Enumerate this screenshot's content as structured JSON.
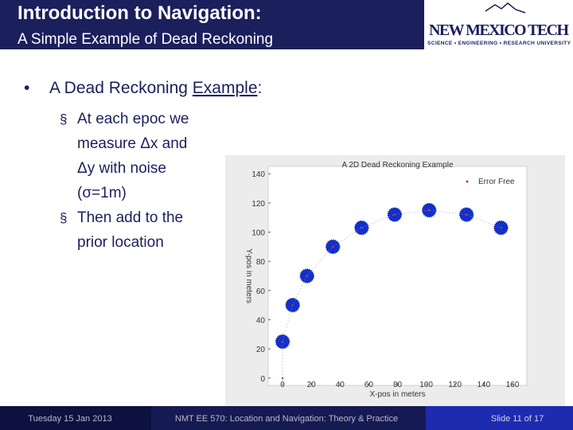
{
  "header": {
    "title": "Introduction to Navigation:",
    "subtitle": "A Simple Example of Dead Reckoning"
  },
  "logo": {
    "name": "NEW MEXICO TECH",
    "tagline": "SCIENCE • ENGINEERING • RESEARCH UNIVERSITY"
  },
  "bullet": {
    "marker": "•",
    "prefix": "A Dead Reckoning ",
    "link": "Example",
    "suffix": ":"
  },
  "sub_bullets": {
    "marker": "§",
    "items": [
      [
        "At each epoc we",
        "measure Δx and",
        "Δy with noise",
        "(σ=1m)"
      ],
      [
        "Then add to the",
        "prior location"
      ]
    ]
  },
  "chart_data": {
    "type": "scatter",
    "title": "A 2D Dead Reckoning Example",
    "xlabel": "X-pos in meters",
    "ylabel": "Y-pos in meters",
    "series": [
      {
        "name": "Error Free",
        "color": "#e03030",
        "x": [
          0,
          0,
          7,
          17,
          35,
          55,
          78,
          102,
          128,
          152
        ],
        "values": [
          0,
          25,
          50,
          70,
          90,
          103,
          112,
          115,
          112,
          103
        ]
      },
      {
        "color": "#1030d0",
        "x": [
          0,
          7,
          17,
          35,
          55,
          78,
          102,
          128,
          152
        ],
        "values": [
          25,
          50,
          70,
          90,
          103,
          112,
          115,
          112,
          103
        ]
      }
    ],
    "xlim": [
      -10,
      170
    ],
    "ylim": [
      -5,
      145
    ],
    "xticks": [
      0,
      20,
      40,
      60,
      80,
      100,
      120,
      140,
      160
    ],
    "yticks": [
      0,
      20,
      40,
      60,
      80,
      100,
      120,
      140
    ],
    "grid": false,
    "legend": "upper right"
  },
  "footer": {
    "date": "Tuesday 15 Jan 2013",
    "course": "NMT EE 570: Location and Navigation: Theory & Practice",
    "slide": "Slide 11 of 17"
  }
}
